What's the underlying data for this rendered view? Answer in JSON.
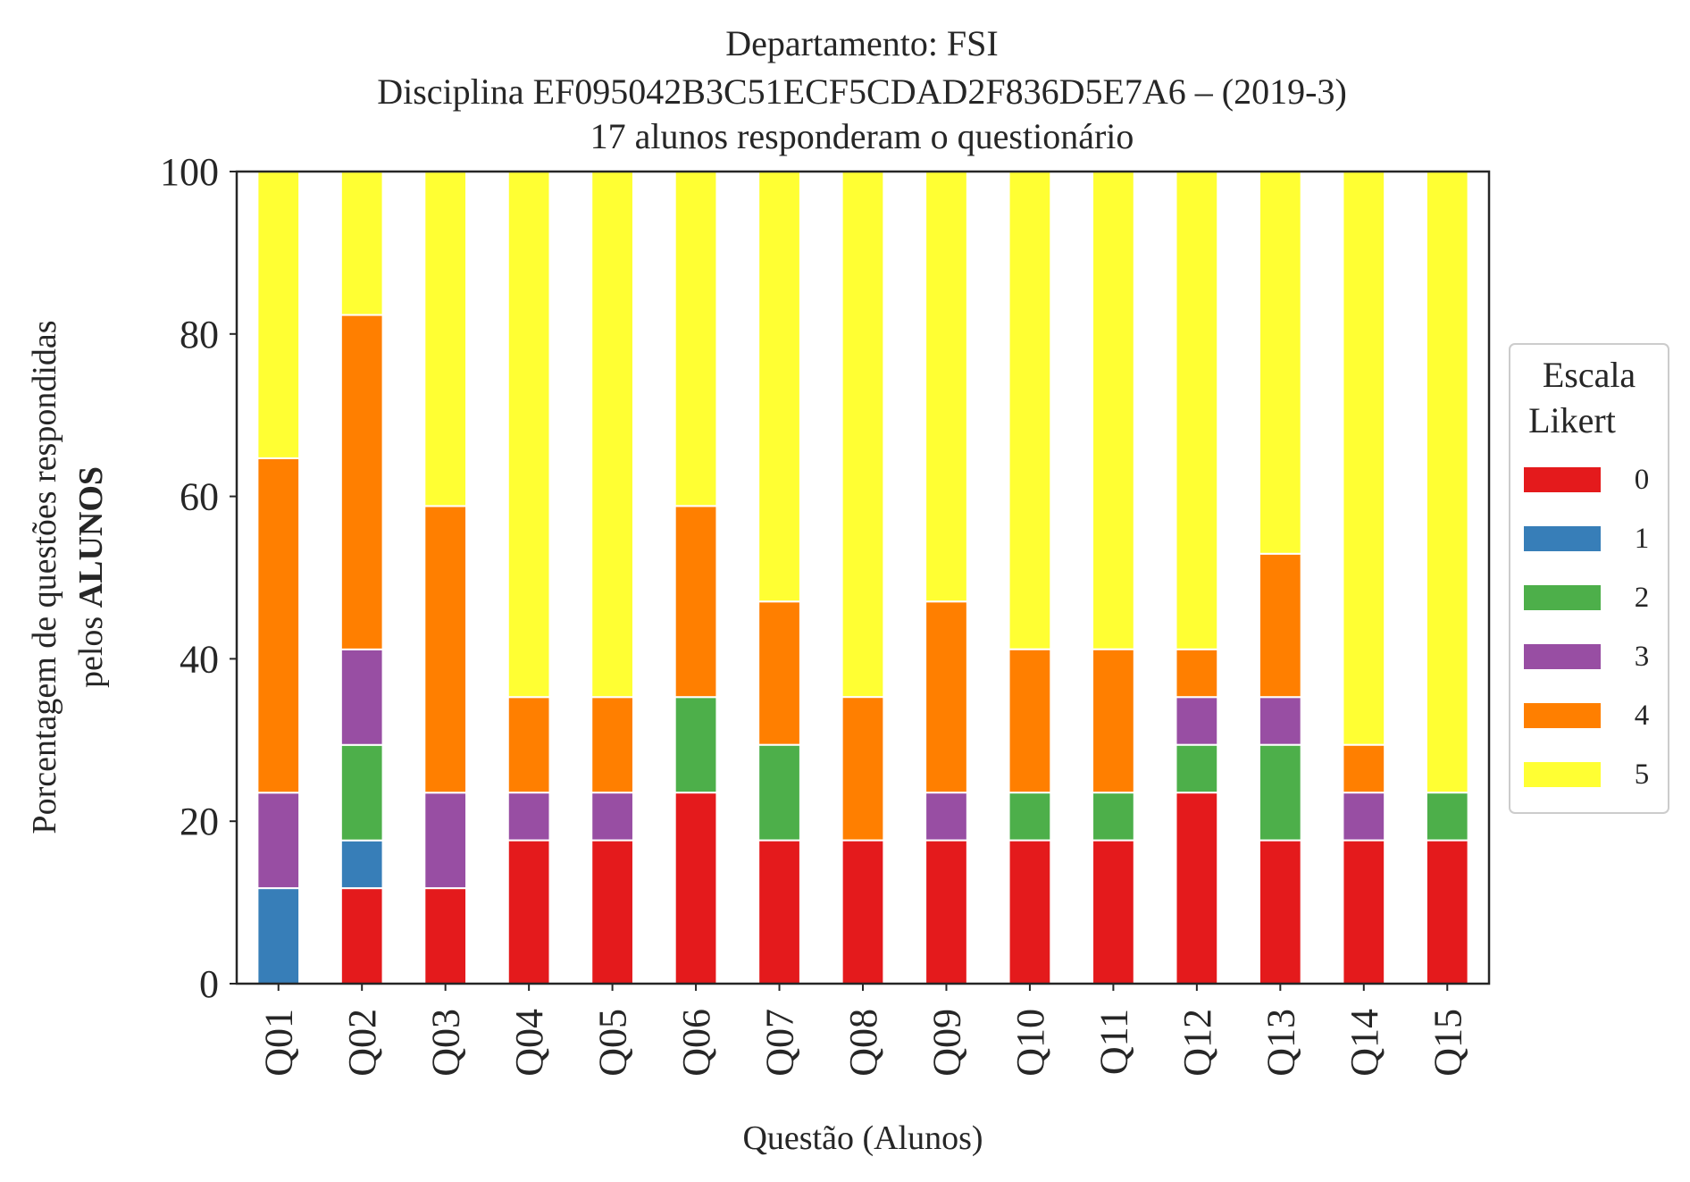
{
  "chart_data": {
    "type": "bar",
    "stacked": true,
    "title_lines": [
      "Departamento: FSI",
      "Disciplina EF095042B3C51ECF5CDAD2F836D5E7A6 – (2019-3)",
      "17 alunos responderam o questionário"
    ],
    "xlabel": "Questão (Alunos)",
    "ylabel_line1": "Porcentagem de questões respondidas",
    "ylabel_line2_prefix": "pelos ",
    "ylabel_line2_bold": "ALUNOS",
    "ylim": [
      0,
      100
    ],
    "yticks": [
      0,
      20,
      40,
      60,
      80,
      100
    ],
    "categories": [
      "Q01",
      "Q02",
      "Q03",
      "Q04",
      "Q05",
      "Q06",
      "Q07",
      "Q08",
      "Q09",
      "Q10",
      "Q11",
      "Q12",
      "Q13",
      "Q14",
      "Q15"
    ],
    "legend": {
      "title_line1": "Escala",
      "title_line2": "Likert",
      "position": "right"
    },
    "grid": false,
    "series": [
      {
        "name": "0",
        "color": "#e41a1c",
        "values": [
          0,
          11.76,
          11.76,
          17.65,
          17.65,
          23.53,
          17.65,
          17.65,
          17.65,
          17.65,
          17.65,
          23.53,
          17.65,
          17.65,
          17.65
        ]
      },
      {
        "name": "1",
        "color": "#377eb8",
        "values": [
          11.76,
          5.88,
          0,
          0,
          0,
          0,
          0,
          0,
          0,
          0,
          0,
          0,
          0,
          0,
          0
        ]
      },
      {
        "name": "2",
        "color": "#4daf4a",
        "values": [
          0,
          11.76,
          0,
          0,
          0,
          11.76,
          11.76,
          0,
          0,
          5.88,
          5.88,
          5.88,
          11.76,
          0,
          5.88
        ]
      },
      {
        "name": "3",
        "color": "#984ea3",
        "values": [
          11.76,
          11.76,
          11.76,
          5.88,
          5.88,
          0,
          0,
          0,
          5.88,
          0,
          0,
          5.88,
          5.88,
          5.88,
          0
        ]
      },
      {
        "name": "4",
        "color": "#ff7f00",
        "values": [
          41.18,
          41.18,
          35.29,
          11.76,
          11.76,
          23.53,
          17.65,
          17.65,
          23.53,
          17.65,
          17.65,
          5.88,
          17.65,
          5.88,
          0
        ]
      },
      {
        "name": "5",
        "color": "#ffff33",
        "values": [
          35.29,
          17.65,
          41.18,
          64.71,
          64.71,
          41.18,
          52.94,
          64.71,
          52.94,
          58.82,
          58.82,
          58.82,
          47.06,
          70.59,
          76.47
        ]
      }
    ]
  }
}
